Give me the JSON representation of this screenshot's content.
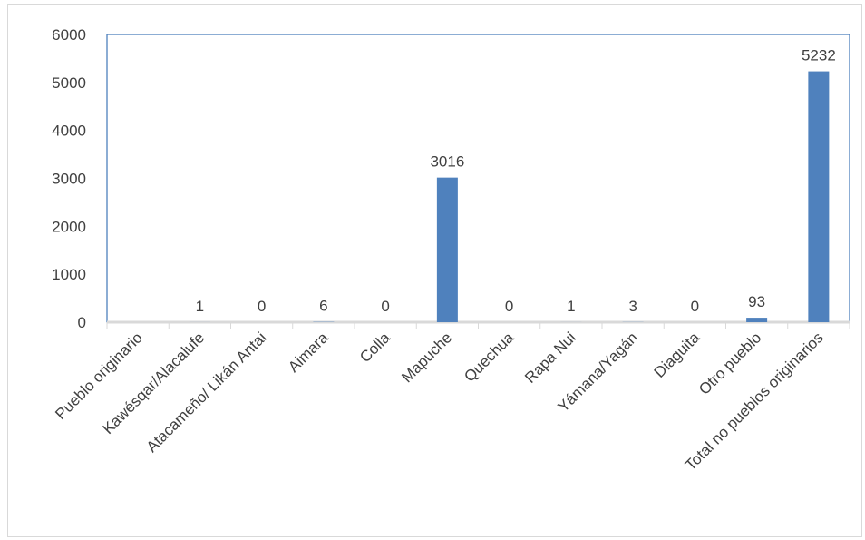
{
  "chart_data": {
    "type": "bar",
    "categories": [
      "Pueblo originario",
      "Kawésqar/Alacalufe",
      "Atacameño/ Likán Antai",
      "Aimara",
      "Colla",
      "Mapuche",
      "Quechua",
      "Rapa Nui",
      "Yámana/Yagán",
      "Diaguita",
      "Otro pueblo",
      "Total no pueblos originarios"
    ],
    "values": [
      null,
      1,
      0,
      6,
      0,
      3016,
      0,
      1,
      3,
      0,
      93,
      5232
    ],
    "data_labels": [
      "",
      "1",
      "0",
      "6",
      "0",
      "3016",
      "0",
      "1",
      "3",
      "0",
      "93",
      "5232"
    ],
    "ylim": [
      0,
      6000
    ],
    "yticks": [
      "0",
      "1000",
      "2000",
      "3000",
      "4000",
      "5000",
      "6000"
    ],
    "ytick_values": [
      0,
      1000,
      2000,
      3000,
      4000,
      5000,
      6000
    ],
    "title": "",
    "xlabel": "",
    "ylabel": "",
    "grid": false,
    "legend": "none",
    "colors": {
      "bar": "#4f81bd",
      "axis": "#4f81bd",
      "baseline": "#d9d9d9",
      "text": "#404040"
    }
  }
}
